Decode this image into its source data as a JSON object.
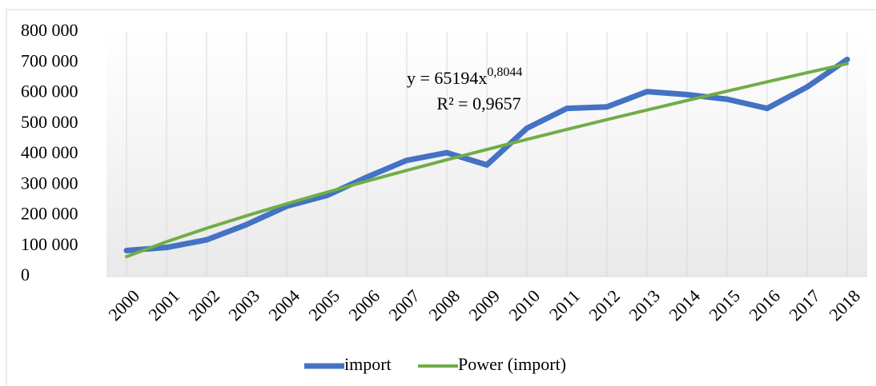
{
  "chart_data": {
    "type": "line",
    "categories": [
      "2000",
      "2001",
      "2002",
      "2003",
      "2004",
      "2005",
      "2006",
      "2007",
      "2008",
      "2009",
      "2010",
      "2011",
      "2012",
      "2013",
      "2014",
      "2015",
      "2016",
      "2017",
      "2018"
    ],
    "series": [
      {
        "name": "import",
        "color": "#4472c4",
        "values": [
          85000,
          95000,
          120000,
          170000,
          230000,
          265000,
          325000,
          380000,
          405000,
          365000,
          485000,
          550000,
          555000,
          605000,
          595000,
          580000,
          550000,
          620000,
          710000
        ]
      },
      {
        "name": "Power (import)",
        "color": "#70ad47",
        "values": [
          65194,
          113800,
          157800,
          198800,
          238000,
          275500,
          311900,
          347300,
          381800,
          415500,
          448600,
          481200,
          513200,
          544700,
          575800,
          606500,
          636700,
          666700,
          696300
        ]
      }
    ],
    "annotations": {
      "equation": "y = 65194x",
      "exponent": "0,8044",
      "r_squared": "R² = 0,9657"
    },
    "ylim": [
      0,
      800000
    ],
    "yticks": [
      0,
      {
        "value": 100000,
        "label": "100 000"
      },
      {
        "value": 200000,
        "label": "200 000"
      },
      {
        "value": 300000,
        "label": "300 000"
      },
      {
        "value": 400000,
        "label": "400 000"
      },
      {
        "value": 500000,
        "label": "500 000"
      },
      {
        "value": 600000,
        "label": "600 000"
      },
      {
        "value": 700000,
        "label": "700 000"
      },
      {
        "value": 800000,
        "label": "800 000"
      }
    ],
    "grid": true,
    "legend": "bottom"
  }
}
